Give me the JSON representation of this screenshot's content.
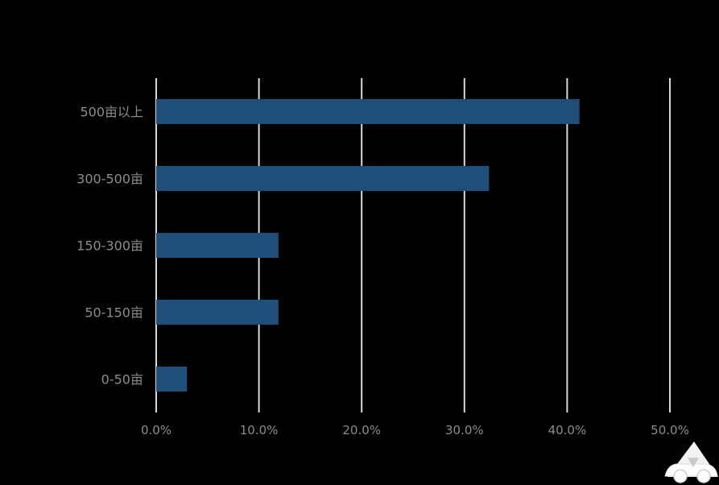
{
  "chart_data": {
    "type": "bar",
    "orientation": "horizontal",
    "categories": [
      "500亩以上",
      "300-500亩",
      "150-300亩",
      "50-150亩",
      "0-50亩"
    ],
    "values": [
      41.2,
      32.4,
      11.9,
      11.9,
      3.0
    ],
    "xlim": [
      0,
      50
    ],
    "xticks": [
      0,
      10,
      20,
      30,
      40,
      50
    ],
    "xtick_labels": [
      "0.0%",
      "10.0%",
      "20.0%",
      "30.0%",
      "40.0%",
      "50.0%"
    ],
    "grid": "vertical",
    "legend": "none",
    "colors": {
      "background": "#000000",
      "bar": "#1f4e79",
      "gridline": "#d9d9d9",
      "label": "#8c8c8c"
    }
  },
  "watermark": {
    "icon": "car-logo-icon"
  }
}
